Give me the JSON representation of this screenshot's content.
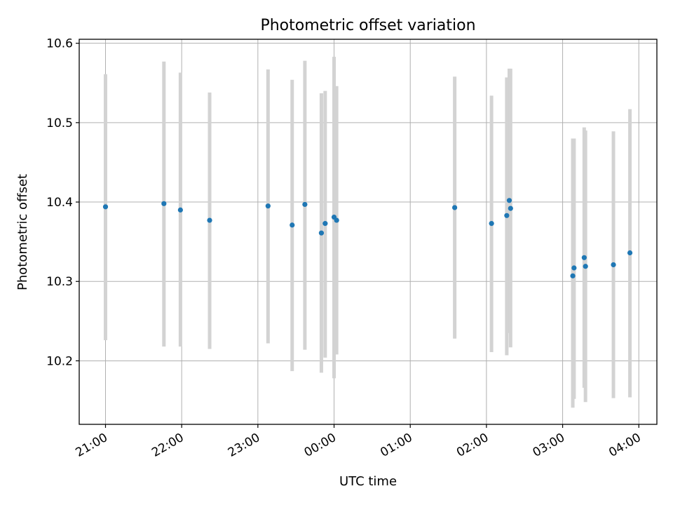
{
  "chart_data": {
    "type": "scatter",
    "title": "Photometric offset variation",
    "xlabel": "UTC time",
    "ylabel": "Photometric offset",
    "x_tick_labels": [
      "21:00",
      "22:00",
      "23:00",
      "00:00",
      "01:00",
      "02:00",
      "03:00",
      "04:00"
    ],
    "y_tick_labels": [
      "10.2",
      "10.3",
      "10.4",
      "10.5",
      "10.6"
    ],
    "y_ticks": [
      10.2,
      10.3,
      10.4,
      10.5,
      10.6
    ],
    "x_tick_hours": [
      21,
      22,
      23,
      24,
      25,
      26,
      27,
      28
    ],
    "xlim_hours": [
      20.655,
      28.237
    ],
    "ylim": [
      10.12,
      10.605
    ],
    "grid": true,
    "point_color": "#1f77b4",
    "errorbar_color": "#d3d3d3",
    "points": [
      {
        "time": "21:00",
        "y": 10.394,
        "ylow": 10.226,
        "yhigh": 10.561
      },
      {
        "time": "21:46",
        "y": 10.398,
        "ylow": 10.218,
        "yhigh": 10.577
      },
      {
        "time": "21:59",
        "y": 10.39,
        "ylow": 10.218,
        "yhigh": 10.563
      },
      {
        "time": "22:22",
        "y": 10.377,
        "ylow": 10.215,
        "yhigh": 10.538
      },
      {
        "time": "23:08",
        "y": 10.395,
        "ylow": 10.222,
        "yhigh": 10.567
      },
      {
        "time": "23:27",
        "y": 10.371,
        "ylow": 10.187,
        "yhigh": 10.554
      },
      {
        "time": "23:37",
        "y": 10.397,
        "ylow": 10.214,
        "yhigh": 10.578
      },
      {
        "time": "23:50",
        "y": 10.361,
        "ylow": 10.185,
        "yhigh": 10.537
      },
      {
        "time": "23:53",
        "y": 10.373,
        "ylow": 10.204,
        "yhigh": 10.54
      },
      {
        "time": "24:00",
        "y": 10.381,
        "ylow": 10.178,
        "yhigh": 10.583
      },
      {
        "time": "24:02",
        "y": 10.377,
        "ylow": 10.208,
        "yhigh": 10.546
      },
      {
        "time": "25:35",
        "y": 10.393,
        "ylow": 10.228,
        "yhigh": 10.558
      },
      {
        "time": "26:04",
        "y": 10.373,
        "ylow": 10.211,
        "yhigh": 10.534
      },
      {
        "time": "26:16",
        "y": 10.383,
        "ylow": 10.207,
        "yhigh": 10.557
      },
      {
        "time": "26:18",
        "y": 10.402,
        "ylow": 10.235,
        "yhigh": 10.568
      },
      {
        "time": "26:19",
        "y": 10.392,
        "ylow": 10.217,
        "yhigh": 10.568
      },
      {
        "time": "27:08",
        "y": 10.307,
        "ylow": 10.141,
        "yhigh": 10.48
      },
      {
        "time": "27:09",
        "y": 10.317,
        "ylow": 10.152,
        "yhigh": 10.48
      },
      {
        "time": "27:17",
        "y": 10.33,
        "ylow": 10.166,
        "yhigh": 10.494
      },
      {
        "time": "27:18",
        "y": 10.319,
        "ylow": 10.148,
        "yhigh": 10.49
      },
      {
        "time": "27:40",
        "y": 10.321,
        "ylow": 10.153,
        "yhigh": 10.489
      },
      {
        "time": "27:53",
        "y": 10.336,
        "ylow": 10.154,
        "yhigh": 10.517
      }
    ]
  }
}
